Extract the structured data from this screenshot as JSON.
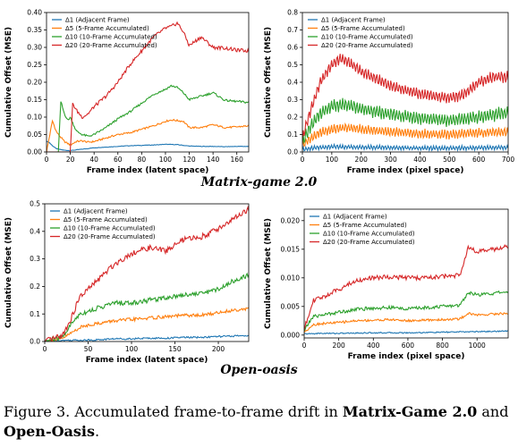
{
  "groups": [
    {
      "title": "Matrix-game 2.0"
    },
    {
      "title": "Open-oasis"
    }
  ],
  "caption": {
    "prefix": "Figure 3. Accumulated frame-to-frame drift in ",
    "bold1": "Matrix-Game 2.0",
    "middle": " and ",
    "bold2": "Open-Oasis",
    "suffix": "."
  },
  "colors": {
    "d1": "#1f77b4",
    "d5": "#ff7f0e",
    "d10": "#2ca02c",
    "d20": "#d62728"
  },
  "chart_data": [
    {
      "type": "line",
      "xlabel": "Frame index (latent space)",
      "ylabel": "Cumulative Offset (MSE)",
      "xlim": [
        0,
        170
      ],
      "ylim": [
        0,
        0.4
      ],
      "xticks": [
        0,
        20,
        40,
        60,
        80,
        100,
        120,
        140,
        160
      ],
      "yticks": [
        0.0,
        0.05,
        0.1,
        0.15,
        0.2,
        0.25,
        0.3,
        0.35,
        0.4
      ],
      "ytick_labels": [
        "0.00",
        "0.05",
        "0.10",
        "0.15",
        "0.20",
        "0.25",
        "0.30",
        "0.35",
        "0.40"
      ],
      "legend": "top-left",
      "grid": false,
      "series": [
        {
          "name": "Δ1 (Adjacent Frame)",
          "color": "#1f77b4",
          "x": [
            0,
            2,
            5,
            8,
            10,
            15,
            20,
            25,
            30,
            40,
            50,
            60,
            70,
            80,
            90,
            100,
            110,
            120,
            130,
            140,
            150,
            160,
            170
          ],
          "y": [
            0.03,
            0.028,
            0.018,
            0.01,
            0.008,
            0.005,
            0.004,
            0.006,
            0.008,
            0.012,
            0.014,
            0.016,
            0.018,
            0.019,
            0.02,
            0.022,
            0.021,
            0.017,
            0.016,
            0.016,
            0.015,
            0.016,
            0.016
          ]
        },
        {
          "name": "Δ5 (5-Frame Accumulated)",
          "color": "#ff7f0e",
          "x": [
            0,
            5,
            8,
            10,
            15,
            20,
            25,
            30,
            35,
            40,
            50,
            60,
            70,
            80,
            90,
            100,
            105,
            110,
            115,
            120,
            130,
            140,
            150,
            160,
            170
          ],
          "y": [
            0.0,
            0.09,
            0.06,
            0.05,
            0.03,
            0.02,
            0.03,
            0.032,
            0.028,
            0.03,
            0.04,
            0.05,
            0.055,
            0.065,
            0.075,
            0.088,
            0.092,
            0.09,
            0.088,
            0.07,
            0.07,
            0.078,
            0.07,
            0.072,
            0.075
          ]
        },
        {
          "name": "Δ10 (10-Frame Accumulated)",
          "color": "#2ca02c",
          "x": [
            0,
            10,
            12,
            15,
            18,
            20,
            25,
            30,
            35,
            40,
            50,
            60,
            70,
            80,
            90,
            100,
            105,
            110,
            115,
            120,
            130,
            140,
            150,
            160,
            170
          ],
          "y": [
            0.0,
            0.0,
            0.145,
            0.11,
            0.09,
            0.1,
            0.06,
            0.05,
            0.045,
            0.05,
            0.07,
            0.095,
            0.115,
            0.14,
            0.165,
            0.18,
            0.19,
            0.185,
            0.17,
            0.15,
            0.16,
            0.17,
            0.148,
            0.145,
            0.142
          ]
        },
        {
          "name": "Δ20 (20-Frame Accumulated)",
          "color": "#d62728",
          "x": [
            0,
            20,
            22,
            25,
            30,
            35,
            40,
            50,
            60,
            70,
            80,
            90,
            100,
            105,
            110,
            115,
            120,
            130,
            140,
            150,
            160,
            170
          ],
          "y": [
            0.0,
            0.0,
            0.14,
            0.12,
            0.1,
            0.11,
            0.13,
            0.16,
            0.2,
            0.25,
            0.29,
            0.33,
            0.355,
            0.36,
            0.37,
            0.345,
            0.305,
            0.33,
            0.3,
            0.298,
            0.292,
            0.29
          ]
        }
      ]
    },
    {
      "type": "line",
      "xlabel": "Frame index (pixel space)",
      "ylabel": "Cumulative Offset (MSE)",
      "xlim": [
        0,
        700
      ],
      "ylim": [
        0,
        0.8
      ],
      "xticks": [
        0,
        100,
        200,
        300,
        400,
        500,
        600,
        700
      ],
      "yticks": [
        0.0,
        0.1,
        0.2,
        0.3,
        0.4,
        0.5,
        0.6,
        0.7,
        0.8
      ],
      "ytick_labels": [
        "0.0",
        "0.1",
        "0.2",
        "0.3",
        "0.4",
        "0.5",
        "0.6",
        "0.7",
        "0.8"
      ],
      "legend": "top-left",
      "grid": false,
      "series": [
        {
          "name": "Δ1 (Adjacent Frame)",
          "color": "#1f77b4",
          "x": [
            0,
            50,
            100,
            200,
            300,
            400,
            500,
            600,
            700
          ],
          "y": [
            0.015,
            0.025,
            0.03,
            0.028,
            0.025,
            0.022,
            0.022,
            0.024,
            0.026
          ]
        },
        {
          "name": "Δ5 (5-Frame Accumulated)",
          "color": "#ff7f0e",
          "x": [
            0,
            30,
            60,
            100,
            150,
            200,
            300,
            400,
            500,
            600,
            700
          ],
          "y": [
            0.04,
            0.08,
            0.11,
            0.13,
            0.14,
            0.13,
            0.115,
            0.105,
            0.1,
            0.11,
            0.115
          ]
        },
        {
          "name": "Δ10 (10-Frame Accumulated)",
          "color": "#2ca02c",
          "x": [
            0,
            30,
            60,
            100,
            150,
            200,
            300,
            400,
            500,
            600,
            700
          ],
          "y": [
            0.06,
            0.15,
            0.22,
            0.265,
            0.27,
            0.245,
            0.215,
            0.195,
            0.18,
            0.2,
            0.225
          ]
        },
        {
          "name": "Δ20 (20-Frame Accumulated)",
          "color": "#d62728",
          "x": [
            0,
            30,
            60,
            100,
            130,
            170,
            200,
            300,
            400,
            500,
            550,
            600,
            650,
            700
          ],
          "y": [
            0.08,
            0.25,
            0.4,
            0.5,
            0.54,
            0.5,
            0.46,
            0.38,
            0.33,
            0.31,
            0.33,
            0.4,
            0.43,
            0.43
          ]
        }
      ]
    },
    {
      "type": "line",
      "xlabel": "Frame index (latent space)",
      "ylabel": "Cumulative Offset (MSE)",
      "xlim": [
        0,
        235
      ],
      "ylim": [
        0,
        0.5
      ],
      "xticks": [
        0,
        50,
        100,
        150,
        200
      ],
      "yticks": [
        0.0,
        0.1,
        0.2,
        0.3,
        0.4,
        0.5
      ],
      "ytick_labels": [
        "0.0",
        "0.1",
        "0.2",
        "0.3",
        "0.4",
        "0.5"
      ],
      "legend": "top-left",
      "grid": false,
      "series": [
        {
          "name": "Δ1 (Adjacent Frame)",
          "color": "#1f77b4",
          "x": [
            0,
            20,
            40,
            60,
            80,
            100,
            120,
            140,
            160,
            180,
            200,
            220,
            235
          ],
          "y": [
            0.002,
            0.004,
            0.005,
            0.006,
            0.01,
            0.01,
            0.012,
            0.012,
            0.015,
            0.015,
            0.018,
            0.02,
            0.022
          ]
        },
        {
          "name": "Δ5 (5-Frame Accumulated)",
          "color": "#ff7f0e",
          "x": [
            0,
            20,
            30,
            40,
            50,
            60,
            70,
            80,
            100,
            120,
            140,
            160,
            180,
            200,
            220,
            235
          ],
          "y": [
            0.0,
            0.01,
            0.03,
            0.05,
            0.06,
            0.065,
            0.07,
            0.075,
            0.08,
            0.085,
            0.09,
            0.095,
            0.095,
            0.105,
            0.115,
            0.12
          ]
        },
        {
          "name": "Δ10 (10-Frame Accumulated)",
          "color": "#2ca02c",
          "x": [
            0,
            20,
            30,
            40,
            50,
            60,
            70,
            80,
            100,
            120,
            140,
            160,
            180,
            200,
            220,
            235
          ],
          "y": [
            0.0,
            0.015,
            0.06,
            0.1,
            0.11,
            0.12,
            0.13,
            0.14,
            0.14,
            0.15,
            0.16,
            0.17,
            0.175,
            0.19,
            0.225,
            0.24
          ]
        },
        {
          "name": "Δ20 (20-Frame Accumulated)",
          "color": "#d62728",
          "x": [
            0,
            20,
            30,
            40,
            50,
            60,
            70,
            80,
            90,
            100,
            120,
            140,
            160,
            180,
            200,
            220,
            235
          ],
          "y": [
            0.0,
            0.02,
            0.08,
            0.16,
            0.19,
            0.22,
            0.25,
            0.28,
            0.3,
            0.32,
            0.34,
            0.33,
            0.37,
            0.38,
            0.41,
            0.45,
            0.48
          ]
        }
      ]
    },
    {
      "type": "line",
      "xlabel": "Frame index (pixel space)",
      "ylabel": "Cumulative Offset (MSE)",
      "xlim": [
        0,
        1180
      ],
      "ylim": [
        -0.0005,
        0.022
      ],
      "xticks": [
        0,
        200,
        400,
        600,
        800,
        1000
      ],
      "yticks": [
        0.0,
        0.005,
        0.01,
        0.015,
        0.02
      ],
      "ytick_labels": [
        "0.000",
        "0.005",
        "0.010",
        "0.015",
        "0.020"
      ],
      "legend": "top-left",
      "grid": false,
      "series": [
        {
          "name": "Δ1 (Adjacent Frame)",
          "color": "#1f77b4",
          "x": [
            0,
            100,
            200,
            400,
            600,
            800,
            1000,
            1180
          ],
          "y": [
            0.0002,
            0.0003,
            0.0003,
            0.0004,
            0.0004,
            0.0005,
            0.0006,
            0.0007
          ]
        },
        {
          "name": "Δ5 (5-Frame Accumulated)",
          "color": "#ff7f0e",
          "x": [
            0,
            50,
            100,
            200,
            300,
            400,
            500,
            600,
            700,
            800,
            900,
            950,
            1000,
            1100,
            1180
          ],
          "y": [
            0.0005,
            0.0018,
            0.002,
            0.0022,
            0.0025,
            0.0026,
            0.0027,
            0.0025,
            0.0026,
            0.0027,
            0.0028,
            0.0038,
            0.0035,
            0.0037,
            0.0038
          ]
        },
        {
          "name": "Δ10 (10-Frame Accumulated)",
          "color": "#2ca02c",
          "x": [
            0,
            50,
            100,
            200,
            300,
            400,
            500,
            600,
            700,
            800,
            900,
            950,
            1000,
            1100,
            1180
          ],
          "y": [
            0.0008,
            0.0032,
            0.0035,
            0.004,
            0.0045,
            0.0047,
            0.0048,
            0.0046,
            0.0048,
            0.005,
            0.0052,
            0.0075,
            0.007,
            0.0073,
            0.0076
          ]
        },
        {
          "name": "Δ20 (20-Frame Accumulated)",
          "color": "#d62728",
          "x": [
            0,
            50,
            100,
            200,
            300,
            400,
            500,
            600,
            700,
            800,
            900,
            950,
            1000,
            1100,
            1180
          ],
          "y": [
            0.001,
            0.006,
            0.0065,
            0.008,
            0.0095,
            0.01,
            0.0102,
            0.01,
            0.01,
            0.0102,
            0.0105,
            0.0155,
            0.0145,
            0.015,
            0.0155
          ]
        }
      ]
    }
  ]
}
